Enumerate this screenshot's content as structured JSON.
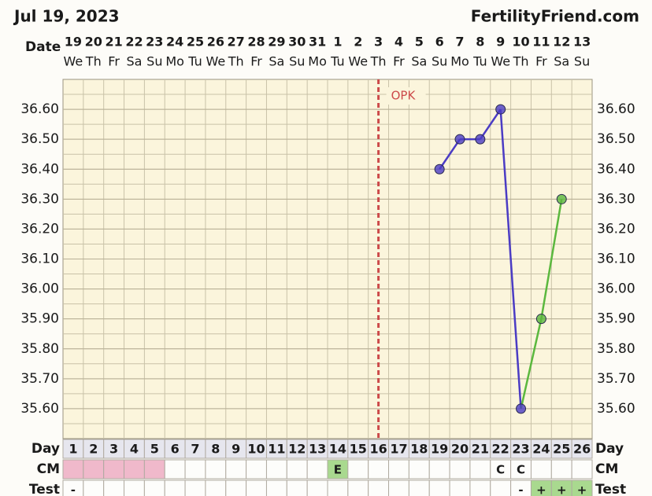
{
  "header": {
    "date": "Jul 19, 2023",
    "site": "FertilityFriend.com"
  },
  "chart_data": {
    "type": "line",
    "row_labels": {
      "date": "Date",
      "day": "Day",
      "cm": "CM",
      "test": "Test"
    },
    "dates": [
      "19",
      "20",
      "21",
      "22",
      "23",
      "24",
      "25",
      "26",
      "27",
      "28",
      "29",
      "30",
      "31",
      "1",
      "2",
      "3",
      "4",
      "5",
      "6",
      "7",
      "8",
      "9",
      "10",
      "11",
      "12",
      "13"
    ],
    "weekdays": [
      "We",
      "Th",
      "Fr",
      "Sa",
      "Su",
      "Mo",
      "Tu",
      "We",
      "Th",
      "Fr",
      "Sa",
      "Su",
      "Mo",
      "Tu",
      "We",
      "Th",
      "Fr",
      "Sa",
      "Su",
      "Mo",
      "Tu",
      "We",
      "Th",
      "Fr",
      "Sa",
      "Su"
    ],
    "days": [
      1,
      2,
      3,
      4,
      5,
      6,
      7,
      8,
      9,
      10,
      11,
      12,
      13,
      14,
      15,
      16,
      17,
      18,
      19,
      20,
      21,
      22,
      23,
      24,
      25,
      26
    ],
    "values": [
      null,
      null,
      null,
      null,
      null,
      null,
      null,
      null,
      null,
      null,
      null,
      null,
      null,
      null,
      null,
      null,
      null,
      null,
      36.4,
      36.5,
      36.5,
      36.6,
      35.6,
      35.9,
      36.3,
      null
    ],
    "marker_colors": [
      null,
      null,
      null,
      null,
      null,
      null,
      null,
      null,
      null,
      null,
      null,
      null,
      null,
      null,
      null,
      null,
      null,
      null,
      "#4b3cc4",
      "#4b3cc4",
      "#4b3cc4",
      "#4b3cc4",
      "#4b3cc4",
      "#5bb83e",
      "#5bb83e",
      null
    ],
    "ylim": [
      35.5,
      36.7
    ],
    "yticks": [
      {
        "value": 35.6,
        "label": "35.60"
      },
      {
        "value": 35.7,
        "label": "35.70"
      },
      {
        "value": 35.8,
        "label": "35.80"
      },
      {
        "value": 35.9,
        "label": "35.90"
      },
      {
        "value": 36.0,
        "label": "36.00"
      },
      {
        "value": 36.1,
        "label": "36.10"
      },
      {
        "value": 36.2,
        "label": "36.20"
      },
      {
        "value": 36.3,
        "label": "36.30"
      },
      {
        "value": 36.4,
        "label": "36.40"
      },
      {
        "value": 36.5,
        "label": "36.50"
      },
      {
        "value": 36.6,
        "label": "36.60"
      }
    ],
    "opk": {
      "x": 16,
      "label": "OPK",
      "color": "#cc4a4a"
    },
    "cm": [
      null,
      null,
      null,
      null,
      null,
      null,
      null,
      null,
      null,
      null,
      null,
      null,
      null,
      "E",
      null,
      null,
      null,
      null,
      null,
      null,
      null,
      "C",
      "C",
      null,
      null,
      null
    ],
    "cm_colors": [
      "#f0b9cb",
      "#f0b9cb",
      "#f0b9cb",
      "#f0b9cb",
      "#f0b9cb",
      null,
      null,
      null,
      null,
      null,
      null,
      null,
      null,
      "#a9d98f",
      null,
      null,
      null,
      null,
      null,
      null,
      null,
      null,
      null,
      null,
      null,
      null
    ],
    "test": [
      "-",
      null,
      null,
      null,
      null,
      null,
      null,
      null,
      null,
      null,
      null,
      null,
      null,
      null,
      null,
      null,
      null,
      null,
      null,
      null,
      null,
      null,
      "-",
      "+",
      "+",
      "+"
    ],
    "test_colors": [
      null,
      null,
      null,
      null,
      null,
      null,
      null,
      null,
      null,
      null,
      null,
      null,
      null,
      null,
      null,
      null,
      null,
      null,
      null,
      null,
      null,
      null,
      null,
      "#a9d98f",
      "#a9d98f",
      "#a9d98f"
    ]
  }
}
